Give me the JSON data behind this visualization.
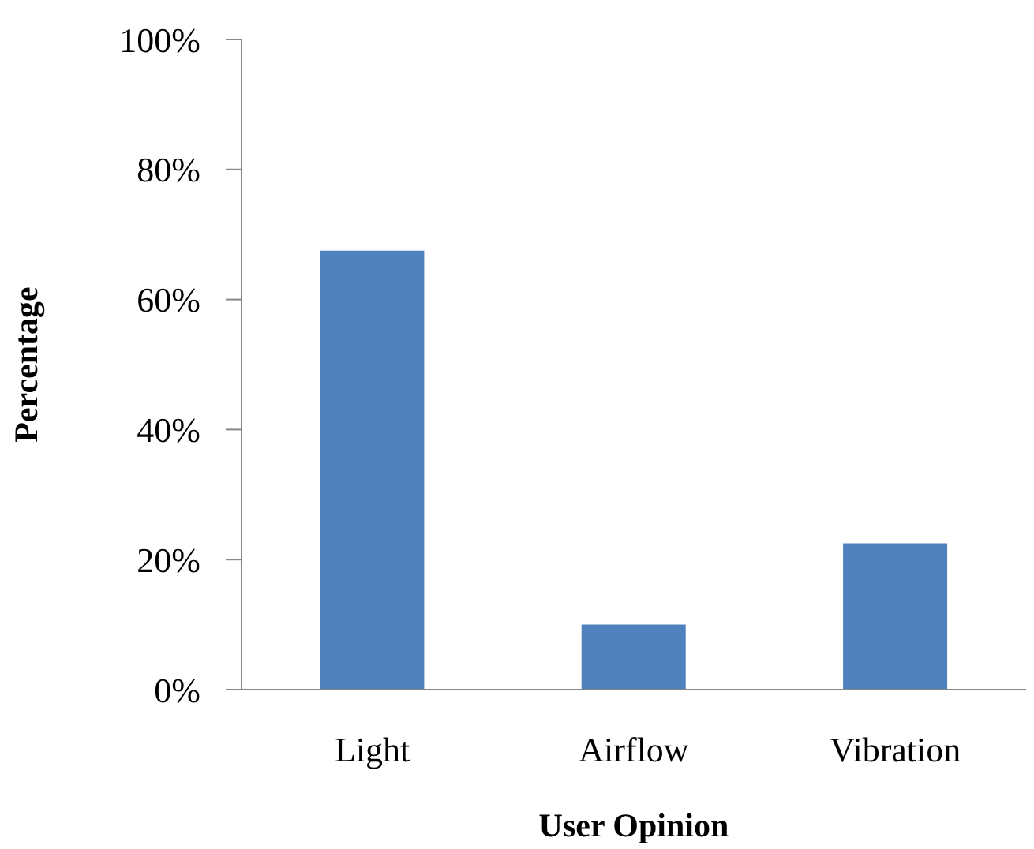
{
  "chart_data": {
    "type": "bar",
    "xlabel": "User Opinion",
    "ylabel": "Percentage",
    "categories": [
      "Light",
      "Airflow",
      "Vibration"
    ],
    "values": [
      67.5,
      10,
      22.5
    ],
    "color": "#4f81bd",
    "ylim": [
      0,
      100
    ],
    "yticks": [
      {
        "value": 0,
        "label": "0%"
      },
      {
        "value": 20,
        "label": "20%"
      },
      {
        "value": 40,
        "label": "40%"
      },
      {
        "value": 60,
        "label": "60%"
      },
      {
        "value": 80,
        "label": "80%"
      },
      {
        "value": 100,
        "label": "100%"
      }
    ]
  }
}
